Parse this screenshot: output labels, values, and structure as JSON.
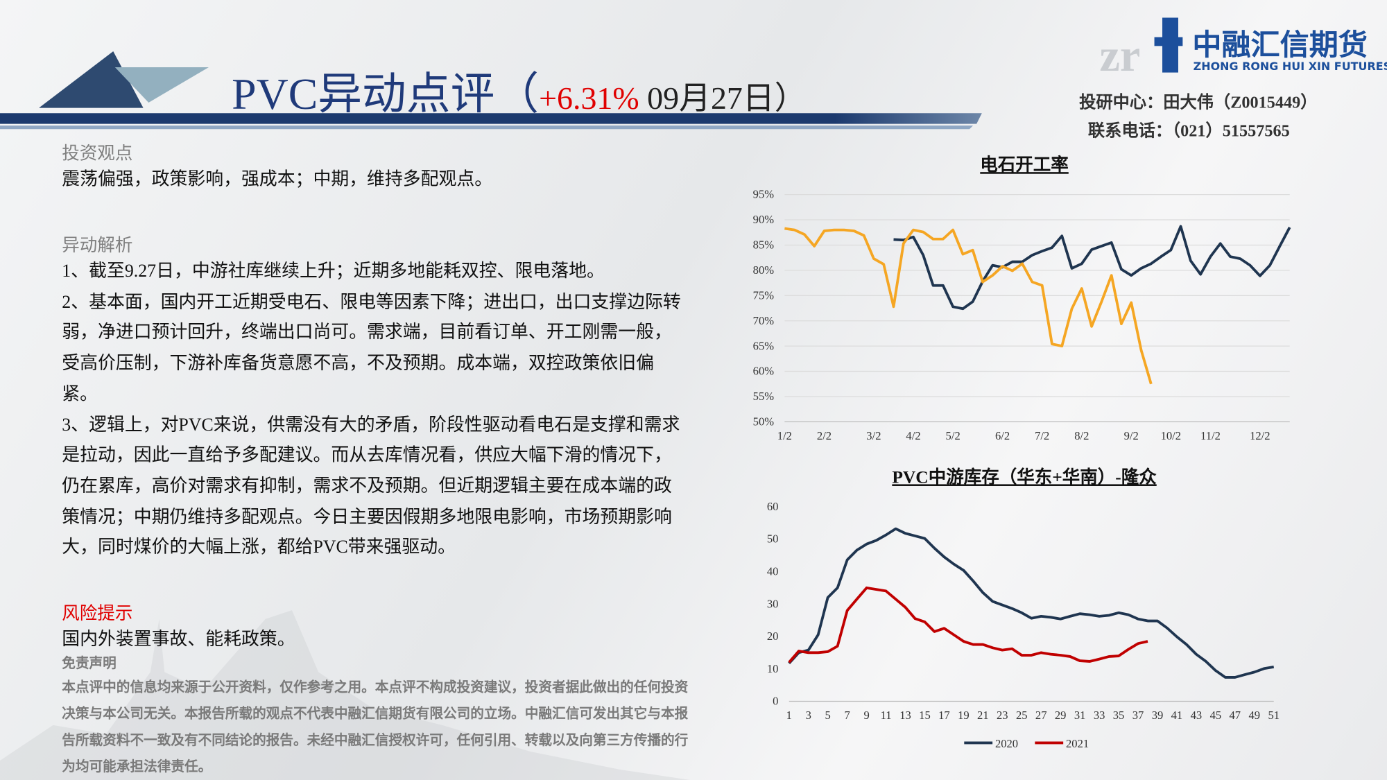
{
  "header": {
    "title": "PVC异动点评（",
    "change": "+6.31%",
    "date": " 09月27日）",
    "logo": "中融汇信期货",
    "logo_en": "ZHONG RONG HUI XIN FUTURES",
    "contact": [
      "投研中心：田大伟（Z0015449）",
      "联系电话：（021）51557565"
    ]
  },
  "view": {
    "heading": "投资观点",
    "text": "震荡偏强，政策影响，强成本；中期，维持多配观点。"
  },
  "analysis": {
    "heading": "异动解析",
    "paragraphs": [
      "1、截至9.27日，中游社库继续上升；近期多地能耗双控、限电落地。",
      "2、基本面，国内开工近期受电石、限电等因素下降；进出口，出口支撑边际转弱，净进口预计回升，终端出口尚可。需求端，目前看订单、开工刚需一般，受高价压制，下游补库备货意愿不高，不及预期。成本端，双控政策依旧偏紧。",
      "3、逻辑上，对PVC来说，供需没有大的矛盾，阶段性驱动看电石是支撑和需求是拉动，因此一直给予多配建议。而从去库情况看，供应大幅下滑的情况下，仍在累库，高价对需求有抑制，需求不及预期。但近期逻辑主要在成本端的政策情况；中期仍维持多配观点。今日主要因假期多地限电影响，市场预期影响大，同时煤价的大幅上涨，都给PVC带来强驱动。"
    ]
  },
  "risk": {
    "heading": "风险提示",
    "text": "国内外装置事故、能耗政策。"
  },
  "disclaimer": {
    "heading": "免责声明",
    "text": "本点评中的信息均来源于公开资料，仅作参考之用。本点评不构成投资建议，投资者据此做出的任何投资决策与本公司无关。本报告所载的观点不代表中融汇信期货有限公司的立场。中融汇信可发出其它与本报告所载资料不一致及有不同结论的报告。未经中融汇信授权许可，任何引用、转载以及向第三方传播的行为均可能承担法律责任。"
  },
  "chart_data": [
    {
      "type": "line",
      "title": "电石开工率",
      "categories": [
        "1/2",
        null,
        null,
        null,
        "2/2",
        null,
        null,
        null,
        null,
        "3/2",
        null,
        null,
        null,
        "4/2",
        null,
        null,
        null,
        "5/2",
        null,
        null,
        null,
        null,
        "6/2",
        null,
        null,
        null,
        "7/2",
        null,
        null,
        null,
        "8/2",
        null,
        null,
        null,
        null,
        "9/2",
        null,
        null,
        null,
        "10/2",
        null,
        null,
        null,
        "11/2",
        null,
        null,
        null,
        null,
        "12/2",
        null,
        null,
        null
      ],
      "series": [
        {
          "color": "#1f3550",
          "values": [
            null,
            null,
            null,
            null,
            null,
            null,
            null,
            null,
            null,
            null,
            null,
            86.1,
            86,
            86.6,
            83,
            77,
            77,
            72.8,
            72.4,
            73.8,
            77.8,
            81,
            80.6,
            81.7,
            81.7,
            83,
            83.8,
            84.5,
            86.8,
            80.4,
            81.3,
            84.1,
            84.8,
            85.5,
            80.2,
            79,
            80.4,
            81.3,
            82.7,
            84,
            88.7,
            81.9,
            79.2,
            82.7,
            85.3,
            82.7,
            82.3,
            81,
            78.9,
            81,
            84.8,
            88.5
          ]
        },
        {
          "color": "#f5a623",
          "values": [
            88.3,
            88,
            87.1,
            84.8,
            87.8,
            88,
            88,
            87.8,
            86.9,
            82.3,
            81.2,
            72.8,
            85.3,
            88,
            87.6,
            86.2,
            86.2,
            88,
            83.2,
            84,
            77.7,
            79,
            80.8,
            79.9,
            81.3,
            77.7,
            77,
            65.4,
            65,
            72.4,
            76.4,
            68.9,
            73.8,
            79,
            69.4,
            73.6,
            64.2,
            57.5,
            null,
            null,
            null,
            null,
            null,
            null,
            null,
            null,
            null,
            null,
            null,
            null,
            null,
            null
          ]
        }
      ],
      "ylim": [
        50,
        95
      ],
      "yticks": [
        {
          "value": 50,
          "label": "50%"
        },
        {
          "value": 55,
          "label": "55%"
        },
        {
          "value": 60,
          "label": "60%"
        },
        {
          "value": 65,
          "label": "65%"
        },
        {
          "value": 70,
          "label": "70%"
        },
        {
          "value": 75,
          "label": "75%"
        },
        {
          "value": 80,
          "label": "80%"
        },
        {
          "value": 85,
          "label": "85%"
        },
        {
          "value": 90,
          "label": "90%"
        },
        {
          "value": 95,
          "label": "95%"
        }
      ],
      "grid": true
    },
    {
      "type": "line",
      "title": "PVC中游库存（华东+华南）-隆众",
      "x": [
        1,
        2,
        3,
        4,
        5,
        6,
        7,
        8,
        9,
        10,
        11,
        12,
        13,
        14,
        15,
        16,
        17,
        18,
        19,
        20,
        21,
        22,
        23,
        24,
        25,
        26,
        27,
        28,
        29,
        30,
        31,
        32,
        33,
        34,
        35,
        36,
        37,
        38,
        39,
        40,
        41,
        42,
        43,
        44,
        45,
        46,
        47,
        48,
        49,
        50,
        51
      ],
      "series": [
        {
          "name": "2020",
          "color": "#1f3550",
          "values": [
            11.7,
            15,
            15.8,
            20.5,
            32,
            35,
            43.6,
            46.6,
            48.5,
            49.6,
            51.3,
            53.2,
            51.8,
            51,
            50.2,
            47.2,
            44.5,
            42.3,
            40.4,
            37.1,
            33.5,
            30.8,
            29.7,
            28.6,
            27.3,
            25.6,
            26.2,
            25.9,
            25.4,
            26.2,
            27,
            26.7,
            26.2,
            26.5,
            27.3,
            26.7,
            25.4,
            24.8,
            24.8,
            22.6,
            19.9,
            17.5,
            14.5,
            12.3,
            9.5,
            7.4,
            7.4,
            8.2,
            9,
            10.1,
            10.6
          ]
        },
        {
          "name": "2021",
          "color": "#c00000",
          "values": [
            12,
            15.5,
            15,
            15,
            15.3,
            17,
            28,
            31.5,
            35,
            34.5,
            34,
            31.5,
            29,
            25.5,
            24.5,
            21.5,
            22.5,
            20.5,
            18.5,
            17.5,
            17.5,
            16.5,
            15.8,
            16.2,
            14.2,
            14.2,
            15,
            14.5,
            14.2,
            13.8,
            12.5,
            12.3,
            13,
            13.8,
            14,
            16,
            17.8,
            18.5,
            null,
            null,
            null,
            null,
            null,
            null,
            null,
            null,
            null,
            null,
            null,
            null,
            null
          ]
        }
      ],
      "xlim": [
        1,
        51
      ],
      "xticks": [
        1,
        3,
        5,
        7,
        9,
        11,
        13,
        15,
        17,
        19,
        21,
        23,
        25,
        27,
        29,
        31,
        33,
        35,
        37,
        39,
        41,
        43,
        45,
        47,
        49,
        51
      ],
      "ylim": [
        0,
        60
      ],
      "yticks": [
        0,
        10,
        20,
        30,
        40,
        50,
        60
      ],
      "legend": "bottom"
    }
  ]
}
